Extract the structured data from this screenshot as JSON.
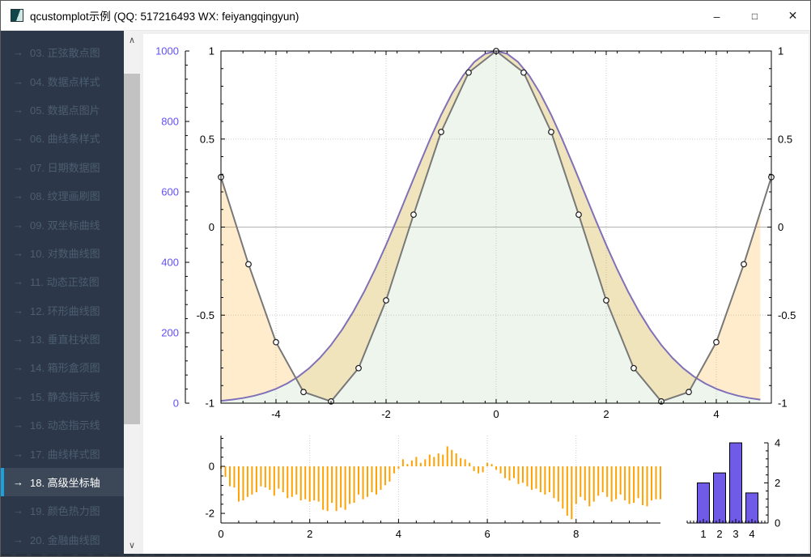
{
  "window": {
    "title": "qcustomplot示例 (QQ: 517216493 WX: feiyangqingyun)"
  },
  "icons": {
    "minimize": "–",
    "maximize": "□",
    "close": "✕",
    "scroll_up": "∧",
    "scroll_down": "∨",
    "item_arrow": "→"
  },
  "sidebar": {
    "accent_color": "#1ba1e2",
    "items": [
      {
        "label": "03. 正弦散点图",
        "selected": false
      },
      {
        "label": "04. 数据点样式",
        "selected": false
      },
      {
        "label": "05. 数据点图片",
        "selected": false
      },
      {
        "label": "06. 曲线条样式",
        "selected": false
      },
      {
        "label": "07. 日期数据图",
        "selected": false
      },
      {
        "label": "08. 纹理画刷图",
        "selected": false
      },
      {
        "label": "09. 双坐标曲线",
        "selected": false
      },
      {
        "label": "10. 对数曲线图",
        "selected": false
      },
      {
        "label": "11. 动态正弦图",
        "selected": false
      },
      {
        "label": "12. 环形曲线图",
        "selected": false
      },
      {
        "label": "13. 垂直柱状图",
        "selected": false
      },
      {
        "label": "14. 箱形盒须图",
        "selected": false
      },
      {
        "label": "15. 静态指示线",
        "selected": false
      },
      {
        "label": "16. 动态指示线",
        "selected": false
      },
      {
        "label": "17. 曲线样式图",
        "selected": false
      },
      {
        "label": "18. 高级坐标轴",
        "selected": true
      },
      {
        "label": "19. 颜色热力图",
        "selected": false
      },
      {
        "label": "20. 金融曲线图",
        "selected": false
      }
    ]
  },
  "chart_data": [
    {
      "id": "main",
      "type": "line",
      "channel_fill_color": "rgba(255,161,0,0.2)",
      "series": [
        {
          "name": "cos",
          "color": "#787878",
          "scatter": "circle",
          "x": {
            "start": -5,
            "step": 0.5,
            "count": 21
          },
          "values": [
            0.2837,
            -0.2108,
            -0.6536,
            -0.9365,
            -0.99,
            -0.8011,
            -0.4161,
            0.0707,
            0.5403,
            0.8776,
            1.0,
            0.8776,
            0.5403,
            0.0707,
            -0.4161,
            -0.8011,
            -0.99,
            -0.9365,
            -0.6536,
            -0.2108,
            0.2837
          ]
        },
        {
          "name": "gauss",
          "color": "#8070B8",
          "fill_color": "rgba(110,170,110,0.12)",
          "value_axis": "left_outer",
          "x": {
            "start": -5,
            "step": 0.2,
            "count": 50
          },
          "values": [
            6.7,
            10.0,
            14.5,
            20.8,
            29.4,
            40.8,
            55.7,
            74.9,
            99.0,
            129.0,
            165.3,
            208.5,
            258.7,
            316.0,
            379.9,
            449.3,
            523.0,
            599.3,
            675.7,
            749.8,
            818.7,
            879.9,
            930.5,
            968.5,
            992.0,
            1000.0,
            992.0,
            968.5,
            930.5,
            879.9,
            818.7,
            749.8,
            675.7,
            599.3,
            523.0,
            449.3,
            379.9,
            316.0,
            258.7,
            208.5,
            165.3,
            129.0,
            99.0,
            74.9,
            55.7,
            40.8,
            29.4,
            20.8,
            14.5,
            10.0
          ]
        }
      ],
      "axes": {
        "bottom": {
          "range": [
            -5,
            5
          ],
          "ticks": [
            -4,
            -2,
            0,
            2,
            4
          ]
        },
        "left": {
          "range": [
            -1,
            1
          ],
          "ticks": [
            1,
            0.5,
            0,
            -0.5,
            -1
          ]
        },
        "right": {
          "range": [
            -1,
            1
          ],
          "ticks": [
            1,
            0.5,
            0,
            -0.5,
            -1
          ]
        },
        "left_outer": {
          "range": [
            0,
            1000
          ],
          "ticks": [
            1000,
            800,
            600,
            400,
            200,
            0
          ],
          "label_color": "#6050F8"
        }
      }
    },
    {
      "id": "sub_left",
      "type": "impulse",
      "color": "#FFA100",
      "x": {
        "start": 0,
        "step": 0.1,
        "count": 100
      },
      "values": [
        -0.1,
        -0.45,
        -0.85,
        -0.9,
        -1.5,
        -1.45,
        -1.3,
        -1.2,
        -1.1,
        -0.85,
        -0.9,
        -1.0,
        -1.25,
        -0.95,
        -1.1,
        -1.35,
        -1.3,
        -1.2,
        -1.45,
        -1.4,
        -1.5,
        -1.45,
        -1.5,
        -1.85,
        -1.9,
        -1.55,
        -1.9,
        -1.75,
        -1.85,
        -1.6,
        -1.55,
        -1.2,
        -1.4,
        -1.3,
        -1.1,
        -1.2,
        -1.0,
        -0.8,
        -0.65,
        -0.3,
        -0.1,
        0.3,
        0.1,
        0.25,
        0.4,
        0.15,
        0.3,
        0.5,
        0.4,
        0.55,
        0.5,
        0.85,
        0.7,
        0.55,
        0.35,
        0.3,
        0.15,
        -0.2,
        -0.3,
        -0.25,
        0.15,
        0.1,
        -0.15,
        -0.3,
        -0.5,
        -0.6,
        -0.5,
        -0.75,
        -0.7,
        -0.85,
        -1.0,
        -0.95,
        -1.1,
        -1.2,
        -1.1,
        -1.35,
        -1.5,
        -1.8,
        -2.1,
        -2.25,
        -1.6,
        -1.3,
        -1.45,
        -1.7,
        -1.5,
        -1.25,
        -1.1,
        -1.3,
        -1.5,
        -1.4,
        -1.2,
        -1.45,
        -1.6,
        -1.55,
        -1.35,
        -1.65,
        -1.7,
        -1.45,
        -1.4,
        -1.4
      ],
      "axes": {
        "bottom": {
          "range": [
            0,
            9.9
          ],
          "ticks": [
            0,
            2,
            4,
            6,
            8
          ]
        },
        "left": {
          "range": [
            -2.41,
            1.31
          ],
          "ticks": [
            0,
            -2
          ]
        }
      }
    },
    {
      "id": "sub_right",
      "type": "bar",
      "bar_color": "#705BE8",
      "categories": [
        1,
        2,
        3,
        4
      ],
      "values": [
        2,
        2.5,
        4,
        1.5
      ],
      "axes": {
        "bottom": {
          "range": [
            0,
            5
          ],
          "ticks": [
            1,
            2,
            3,
            4
          ]
        },
        "right": {
          "range": [
            0,
            4
          ],
          "ticks": [
            0,
            2,
            4
          ]
        }
      }
    }
  ]
}
